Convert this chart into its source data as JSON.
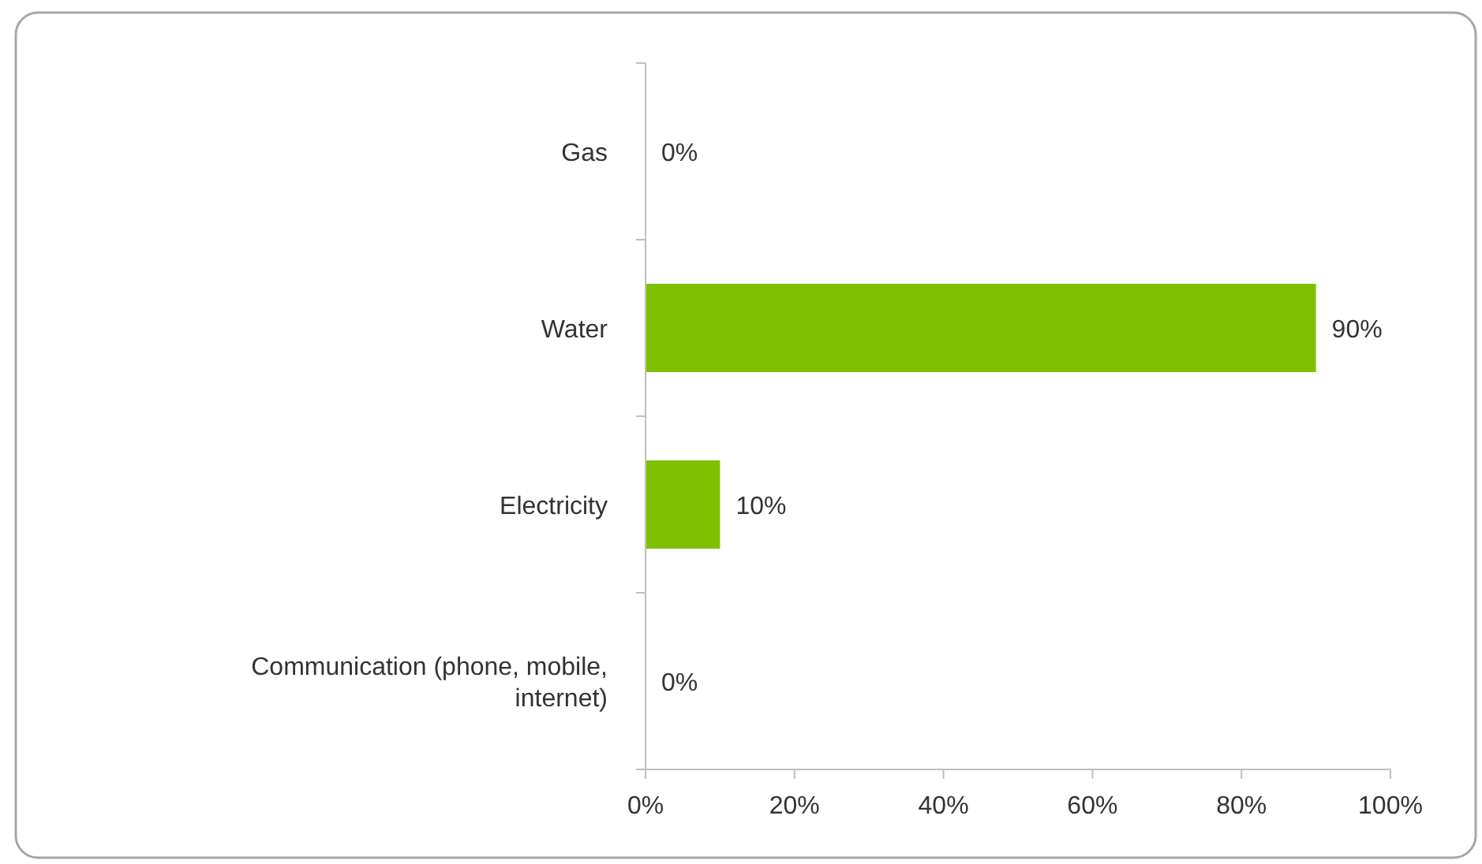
{
  "chart_data": {
    "type": "bar",
    "orientation": "horizontal",
    "categories": [
      "Gas",
      "Water",
      "Electricity",
      "Communication (phone, mobile, internet)"
    ],
    "values": [
      0,
      90,
      10,
      0
    ],
    "value_labels": [
      "0%",
      "90%",
      "10%",
      "0%"
    ],
    "color": "#80c000",
    "xlim": [
      0,
      100
    ],
    "xticks": [
      {
        "value": 0,
        "label": "0%"
      },
      {
        "value": 20,
        "label": "20%"
      },
      {
        "value": 40,
        "label": "40%"
      },
      {
        "value": 60,
        "label": "60%"
      },
      {
        "value": 80,
        "label": "80%"
      },
      {
        "value": 100,
        "label": "100%"
      }
    ],
    "grid": false,
    "legend": false
  }
}
